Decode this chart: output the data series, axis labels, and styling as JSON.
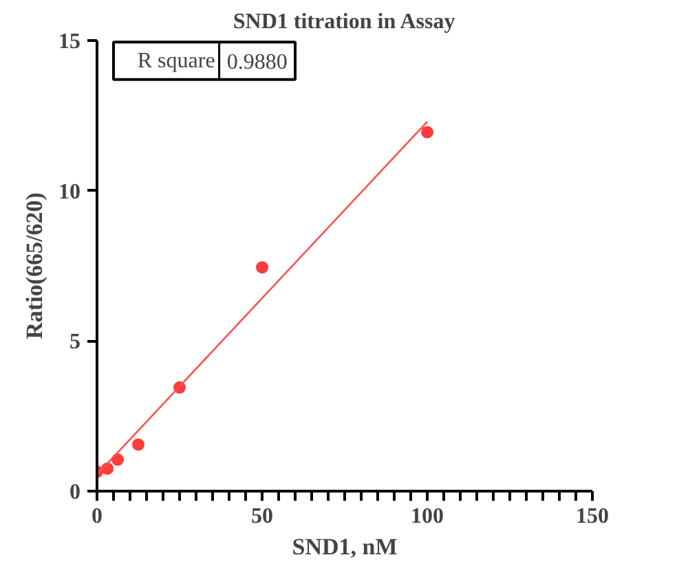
{
  "chart_data": {
    "type": "scatter",
    "title": "SND1 titration in Assay",
    "xlabel": "SND1, nM",
    "ylabel": "Ratio(665/620)",
    "x": [
      0,
      3.125,
      6.25,
      12.5,
      25,
      50,
      100
    ],
    "series": [
      {
        "color": "#ff3b3b",
        "values": [
          0.65,
          0.75,
          1.05,
          1.55,
          3.45,
          7.45,
          11.95
        ]
      },
      {
        "type": "line",
        "marker": "none",
        "color": "#ff5050",
        "x": [
          0,
          100
        ],
        "values": [
          0.55,
          12.3
        ]
      }
    ],
    "marker": "circle",
    "line_style": "solid",
    "grid": false,
    "annotations": [
      "R square",
      "0.9880"
    ],
    "xlim": [
      0,
      150
    ],
    "ylim": [
      0,
      15
    ],
    "xticks": [
      0,
      {
        "value": 5,
        "label": null
      },
      {
        "value": 10,
        "label": null
      },
      {
        "value": 15,
        "label": null
      },
      {
        "value": 20,
        "label": null
      },
      {
        "value": 25,
        "label": null
      },
      {
        "value": 30,
        "label": null
      },
      {
        "value": 35,
        "label": null
      },
      {
        "value": 40,
        "label": null
      },
      {
        "value": 45,
        "label": null
      },
      50,
      {
        "value": 55,
        "label": null
      },
      {
        "value": 60,
        "label": null
      },
      {
        "value": 65,
        "label": null
      },
      {
        "value": 70,
        "label": null
      },
      {
        "value": 75,
        "label": null
      },
      {
        "value": 80,
        "label": null
      },
      {
        "value": 85,
        "label": null
      },
      {
        "value": 90,
        "label": null
      },
      {
        "value": 95,
        "label": null
      },
      100,
      {
        "value": 105,
        "label": null
      },
      {
        "value": 110,
        "label": null
      },
      {
        "value": 115,
        "label": null
      },
      {
        "value": 120,
        "label": null
      },
      {
        "value": 125,
        "label": null
      },
      {
        "value": 130,
        "label": null
      },
      {
        "value": 135,
        "label": null
      },
      {
        "value": 140,
        "label": null
      },
      {
        "value": 145,
        "label": null
      },
      150
    ],
    "yticks": [
      0,
      5,
      10,
      15
    ]
  }
}
